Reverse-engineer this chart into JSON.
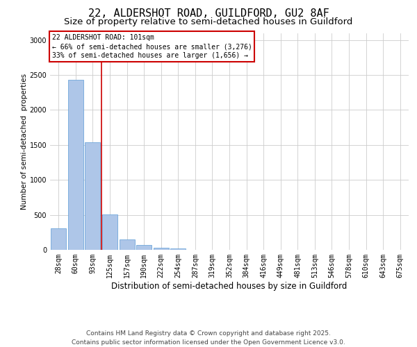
{
  "title1": "22, ALDERSHOT ROAD, GUILDFORD, GU2 8AF",
  "title2": "Size of property relative to semi-detached houses in Guildford",
  "xlabel": "Distribution of semi-detached houses by size in Guildford",
  "ylabel": "Number of semi-detached  properties",
  "categories": [
    "28sqm",
    "60sqm",
    "93sqm",
    "125sqm",
    "157sqm",
    "190sqm",
    "222sqm",
    "254sqm",
    "287sqm",
    "319sqm",
    "352sqm",
    "384sqm",
    "416sqm",
    "449sqm",
    "481sqm",
    "513sqm",
    "546sqm",
    "578sqm",
    "610sqm",
    "643sqm",
    "675sqm"
  ],
  "values": [
    310,
    2430,
    1540,
    510,
    145,
    65,
    30,
    15,
    0,
    0,
    0,
    0,
    0,
    0,
    0,
    0,
    0,
    0,
    0,
    0,
    0
  ],
  "bar_color": "#aec6e8",
  "bar_edge_color": "#5b9bd5",
  "vline_color": "#cc0000",
  "vline_x": 2.5,
  "annotation_text": "22 ALDERSHOT ROAD: 101sqm\n← 66% of semi-detached houses are smaller (3,276)\n33% of semi-detached houses are larger (1,656) →",
  "annotation_box_color": "#cc0000",
  "footer1": "Contains HM Land Registry data © Crown copyright and database right 2025.",
  "footer2": "Contains public sector information licensed under the Open Government Licence v3.0.",
  "ylim": [
    0,
    3100
  ],
  "yticks": [
    0,
    500,
    1000,
    1500,
    2000,
    2500,
    3000
  ],
  "bg_color": "#ffffff",
  "grid_color": "#cccccc",
  "title1_fontsize": 11,
  "title2_fontsize": 9.5,
  "xlabel_fontsize": 8.5,
  "ylabel_fontsize": 7.5,
  "tick_fontsize": 7,
  "annotation_fontsize": 7,
  "footer_fontsize": 6.5
}
